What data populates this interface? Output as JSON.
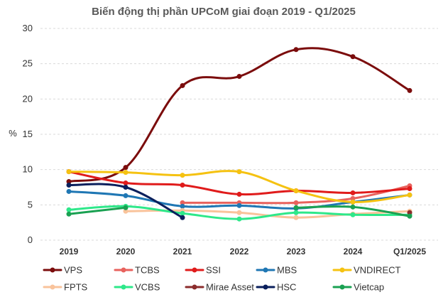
{
  "chart_data": {
    "type": "line",
    "title": "Biến động thị phần UPCoM giai đoạn 2019 - Q1/2025",
    "ylabel": "%",
    "xlabel": "",
    "ylim": [
      0,
      30
    ],
    "yticks": [
      0,
      5,
      10,
      15,
      20,
      25,
      30
    ],
    "categories": [
      "2019",
      "2020",
      "2021",
      "2022",
      "2023",
      "2024",
      "Q1/2025"
    ],
    "grid": true,
    "legend_position": "bottom",
    "series": [
      {
        "name": "VPS",
        "color": "#7b0c0c",
        "values": [
          8.3,
          10.3,
          21.9,
          23.2,
          27.0,
          26.0,
          21.2
        ]
      },
      {
        "name": "TCBS",
        "color": "#e8625d",
        "values": [
          null,
          null,
          5.3,
          5.3,
          5.3,
          5.9,
          7.7
        ]
      },
      {
        "name": "SSI",
        "color": "#e01b1b",
        "values": [
          9.7,
          8.1,
          7.8,
          6.5,
          7.0,
          6.7,
          7.3
        ]
      },
      {
        "name": "MBS",
        "color": "#1f77b4",
        "values": [
          6.9,
          6.3,
          4.8,
          4.9,
          4.5,
          5.4,
          6.4
        ]
      },
      {
        "name": "VNDIRECT",
        "color": "#f5c211",
        "values": [
          9.7,
          9.6,
          9.2,
          9.7,
          7.0,
          5.4,
          6.4
        ]
      },
      {
        "name": "FPTS",
        "color": "#f9c39b",
        "values": [
          null,
          4.1,
          4.2,
          3.9,
          3.2,
          3.7,
          4.1
        ]
      },
      {
        "name": "VCBS",
        "color": "#2ee88a",
        "values": [
          4.3,
          4.8,
          3.8,
          3.0,
          3.9,
          3.6,
          3.6
        ]
      },
      {
        "name": "Mirae Asset",
        "color": "#8b2c2c",
        "values": [
          null,
          null,
          null,
          null,
          null,
          null,
          3.9
        ]
      },
      {
        "name": "HSC",
        "color": "#0a1f5c",
        "values": [
          7.8,
          7.5,
          3.2,
          null,
          null,
          null,
          null
        ]
      },
      {
        "name": "Vietcap",
        "color": "#1aa152",
        "values": [
          3.7,
          4.6,
          null,
          null,
          4.6,
          4.7,
          3.4
        ]
      }
    ]
  }
}
